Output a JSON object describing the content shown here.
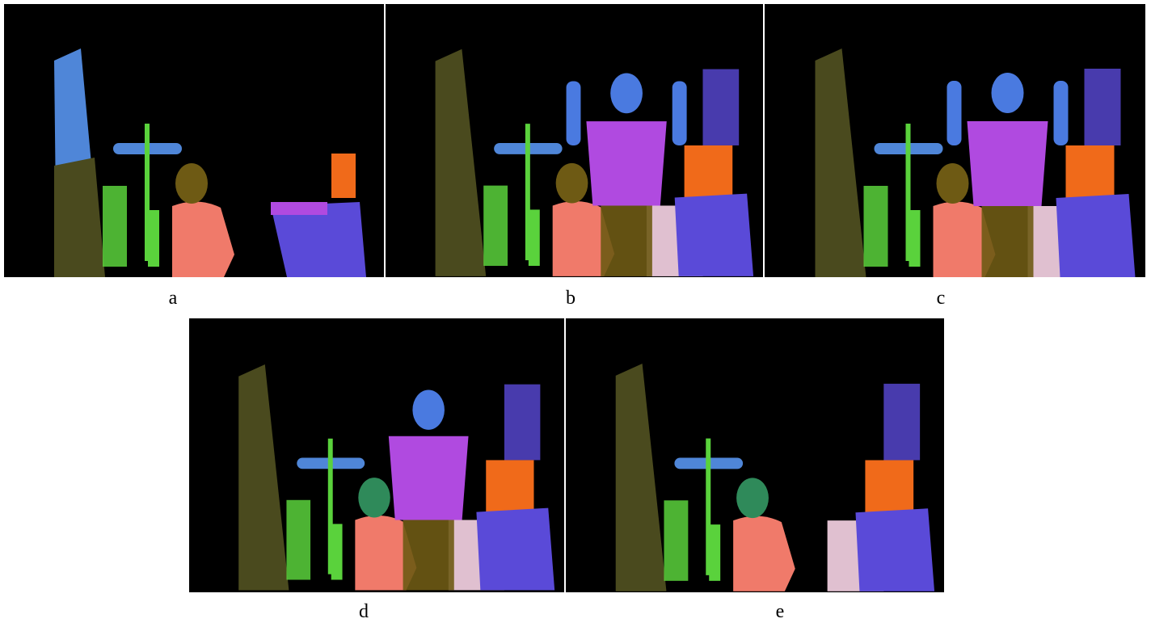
{
  "panels": [
    {
      "id": "a",
      "caption": "a",
      "has_person": false,
      "variant": "partial"
    },
    {
      "id": "b",
      "caption": "b",
      "has_person": true,
      "variant": "arms-up"
    },
    {
      "id": "c",
      "caption": "c",
      "has_person": true,
      "variant": "arms-up"
    },
    {
      "id": "d",
      "caption": "d",
      "has_person": true,
      "variant": "walking"
    },
    {
      "id": "e",
      "caption": "e",
      "has_person": false,
      "variant": "empty"
    }
  ],
  "colors": {
    "background": "#000000",
    "wall_olive": "#4a4a1e",
    "pole_blue": "#4f86d8",
    "plant_green": "#5ad23c",
    "chair_salmon": "#f07a6a",
    "head_brown": "#6e5a14",
    "head_green": "#2f8a5a",
    "person_violet": "#b04ae0",
    "person_blue": "#4a7ae0",
    "shelf_orange": "#f06a1a",
    "desk_violet": "#5a4ad8",
    "desk_pink": "#e0c0d0"
  }
}
